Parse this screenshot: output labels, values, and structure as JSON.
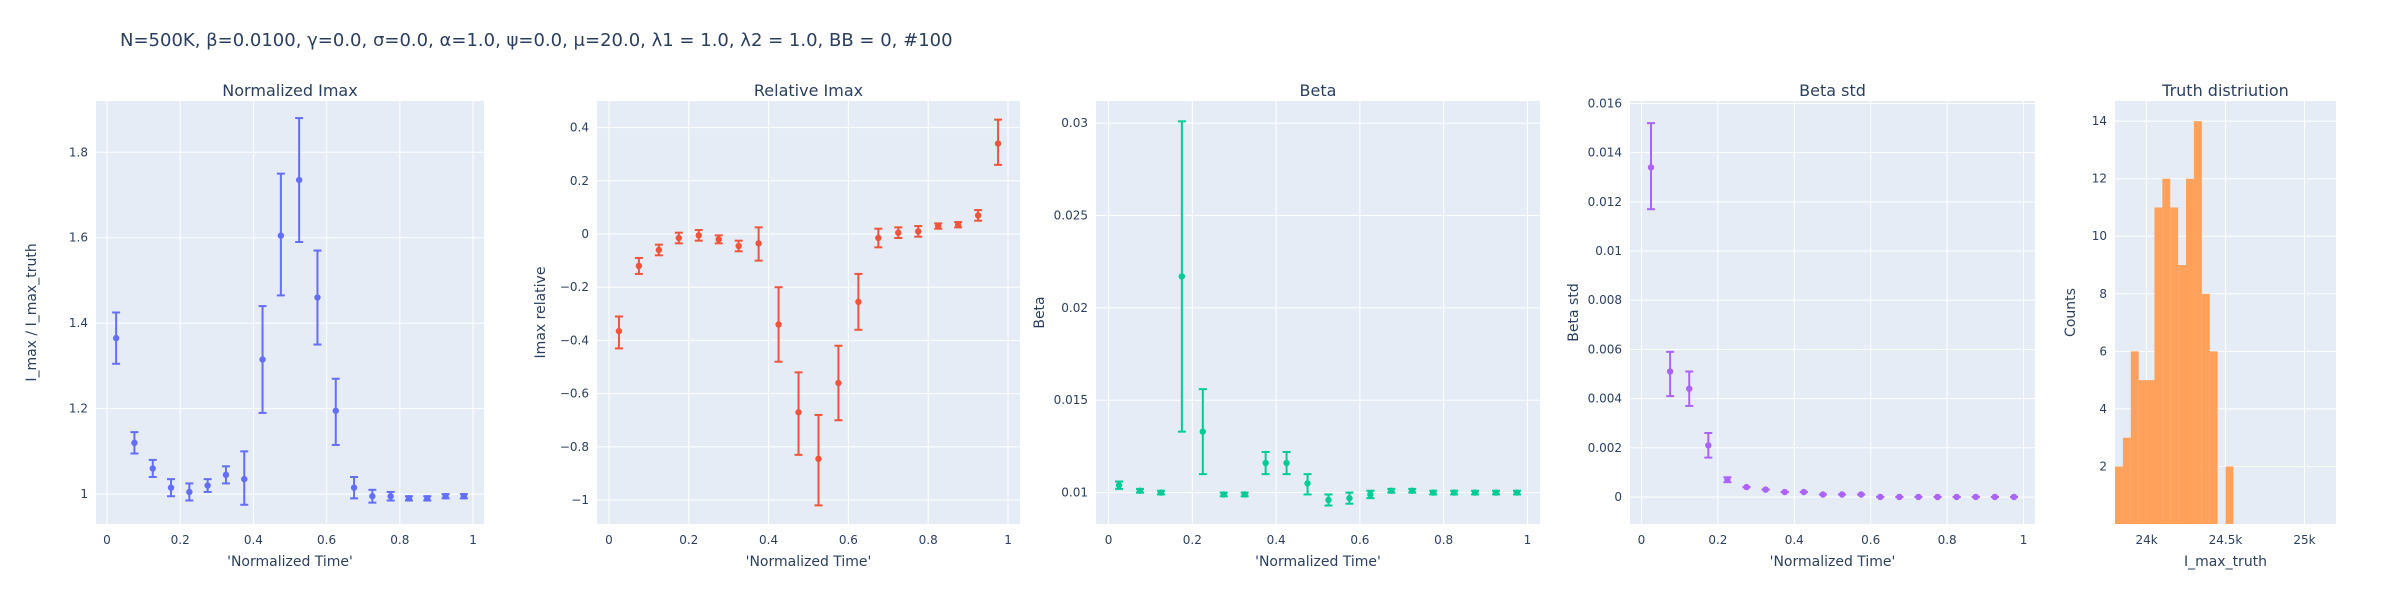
{
  "title": "N=500K, β=0.0100, γ=0.0, σ=0.0,  α=1.0, ψ=0.0, μ=20.0, λ1 = 1.0, λ2 = 1.0, BB = 0, #100",
  "colors": {
    "plot_bg": "#e5ecf6",
    "grid": "#ffffff",
    "text": "#2a3f5f"
  },
  "chart_data": [
    {
      "type": "scatter",
      "title": "Normalized Imax",
      "xlabel": "'Normalized Time'",
      "ylabel": "I_max / I_max_truth",
      "color": "#636efa",
      "xlim": [
        -0.03,
        1.03
      ],
      "ylim": [
        0.93,
        1.92
      ],
      "xticks": [
        0,
        0.2,
        0.4,
        0.6,
        0.8,
        1
      ],
      "xtick_labels": [
        "0",
        "0.2",
        "0.4",
        "0.6",
        "0.8",
        "1"
      ],
      "yticks": [
        1,
        1.2,
        1.4,
        1.6,
        1.8
      ],
      "ytick_labels": [
        "1",
        "1.2",
        "1.4",
        "1.6",
        "1.8"
      ],
      "points": [
        {
          "x": 0.025,
          "y": 1.365,
          "lo": 1.305,
          "hi": 1.425
        },
        {
          "x": 0.075,
          "y": 1.12,
          "lo": 1.095,
          "hi": 1.145
        },
        {
          "x": 0.125,
          "y": 1.06,
          "lo": 1.04,
          "hi": 1.08
        },
        {
          "x": 0.175,
          "y": 1.015,
          "lo": 0.995,
          "hi": 1.035
        },
        {
          "x": 0.225,
          "y": 1.005,
          "lo": 0.985,
          "hi": 1.025
        },
        {
          "x": 0.275,
          "y": 1.02,
          "lo": 1.005,
          "hi": 1.035
        },
        {
          "x": 0.325,
          "y": 1.045,
          "lo": 1.025,
          "hi": 1.065
        },
        {
          "x": 0.375,
          "y": 1.035,
          "lo": 0.975,
          "hi": 1.1
        },
        {
          "x": 0.425,
          "y": 1.315,
          "lo": 1.19,
          "hi": 1.44
        },
        {
          "x": 0.475,
          "y": 1.605,
          "lo": 1.465,
          "hi": 1.75
        },
        {
          "x": 0.525,
          "y": 1.735,
          "lo": 1.59,
          "hi": 1.88
        },
        {
          "x": 0.575,
          "y": 1.46,
          "lo": 1.35,
          "hi": 1.57
        },
        {
          "x": 0.625,
          "y": 1.195,
          "lo": 1.115,
          "hi": 1.27
        },
        {
          "x": 0.675,
          "y": 1.015,
          "lo": 0.99,
          "hi": 1.04
        },
        {
          "x": 0.725,
          "y": 0.995,
          "lo": 0.98,
          "hi": 1.01
        },
        {
          "x": 0.775,
          "y": 0.995,
          "lo": 0.985,
          "hi": 1.005
        },
        {
          "x": 0.825,
          "y": 0.99,
          "lo": 0.985,
          "hi": 0.995
        },
        {
          "x": 0.875,
          "y": 0.99,
          "lo": 0.985,
          "hi": 0.995
        },
        {
          "x": 0.925,
          "y": 0.995,
          "lo": 0.99,
          "hi": 1.0
        },
        {
          "x": 0.975,
          "y": 0.995,
          "lo": 0.99,
          "hi": 1.0
        }
      ]
    },
    {
      "type": "scatter",
      "title": "Relative Imax",
      "xlabel": "'Normalized Time'",
      "ylabel": "Imax relative",
      "color": "#ef553b",
      "xlim": [
        -0.03,
        1.03
      ],
      "ylim": [
        -1.09,
        0.5
      ],
      "xticks": [
        0,
        0.2,
        0.4,
        0.6,
        0.8,
        1
      ],
      "xtick_labels": [
        "0",
        "0.2",
        "0.4",
        "0.6",
        "0.8",
        "1"
      ],
      "yticks": [
        -1,
        -0.8,
        -0.6,
        -0.4,
        -0.2,
        0,
        0.2,
        0.4
      ],
      "ytick_labels": [
        "−1",
        "−0.8",
        "−0.6",
        "−0.4",
        "−0.2",
        "0",
        "0.2",
        "0.4"
      ],
      "points": [
        {
          "x": 0.025,
          "y": -0.365,
          "lo": -0.43,
          "hi": -0.31
        },
        {
          "x": 0.075,
          "y": -0.12,
          "lo": -0.15,
          "hi": -0.09
        },
        {
          "x": 0.125,
          "y": -0.06,
          "lo": -0.08,
          "hi": -0.04
        },
        {
          "x": 0.175,
          "y": -0.015,
          "lo": -0.035,
          "hi": 0.005
        },
        {
          "x": 0.225,
          "y": -0.005,
          "lo": -0.025,
          "hi": 0.015
        },
        {
          "x": 0.275,
          "y": -0.02,
          "lo": -0.035,
          "hi": -0.005
        },
        {
          "x": 0.325,
          "y": -0.045,
          "lo": -0.065,
          "hi": -0.025
        },
        {
          "x": 0.375,
          "y": -0.035,
          "lo": -0.1,
          "hi": 0.025
        },
        {
          "x": 0.425,
          "y": -0.34,
          "lo": -0.48,
          "hi": -0.2
        },
        {
          "x": 0.475,
          "y": -0.67,
          "lo": -0.83,
          "hi": -0.52
        },
        {
          "x": 0.525,
          "y": -0.845,
          "lo": -1.02,
          "hi": -0.68
        },
        {
          "x": 0.575,
          "y": -0.56,
          "lo": -0.7,
          "hi": -0.42
        },
        {
          "x": 0.625,
          "y": -0.255,
          "lo": -0.36,
          "hi": -0.15
        },
        {
          "x": 0.675,
          "y": -0.015,
          "lo": -0.05,
          "hi": 0.02
        },
        {
          "x": 0.725,
          "y": 0.005,
          "lo": -0.015,
          "hi": 0.025
        },
        {
          "x": 0.775,
          "y": 0.01,
          "lo": -0.01,
          "hi": 0.03
        },
        {
          "x": 0.825,
          "y": 0.03,
          "lo": 0.02,
          "hi": 0.04
        },
        {
          "x": 0.875,
          "y": 0.035,
          "lo": 0.025,
          "hi": 0.045
        },
        {
          "x": 0.925,
          "y": 0.07,
          "lo": 0.05,
          "hi": 0.09
        },
        {
          "x": 0.975,
          "y": 0.34,
          "lo": 0.26,
          "hi": 0.43
        }
      ]
    },
    {
      "type": "scatter",
      "title": "Beta",
      "xlabel": "'Normalized Time'",
      "ylabel": "Beta",
      "color": "#00cc96",
      "xlim": [
        -0.03,
        1.03
      ],
      "ylim": [
        0.0083,
        0.0312
      ],
      "xticks": [
        0,
        0.2,
        0.4,
        0.6,
        0.8,
        1
      ],
      "xtick_labels": [
        "0",
        "0.2",
        "0.4",
        "0.6",
        "0.8",
        "1"
      ],
      "yticks": [
        0.01,
        0.015,
        0.02,
        0.025,
        0.03
      ],
      "ytick_labels": [
        "0.01",
        "0.015",
        "0.02",
        "0.025",
        "0.03"
      ],
      "points": [
        {
          "x": 0.025,
          "y": 0.0104,
          "lo": 0.0102,
          "hi": 0.0106
        },
        {
          "x": 0.075,
          "y": 0.0101,
          "lo": 0.01,
          "hi": 0.0102
        },
        {
          "x": 0.125,
          "y": 0.01,
          "lo": 0.0099,
          "hi": 0.0101
        },
        {
          "x": 0.175,
          "y": 0.0217,
          "lo": 0.0133,
          "hi": 0.0301
        },
        {
          "x": 0.225,
          "y": 0.0133,
          "lo": 0.011,
          "hi": 0.0156
        },
        {
          "x": 0.275,
          "y": 0.0099,
          "lo": 0.0098,
          "hi": 0.01
        },
        {
          "x": 0.325,
          "y": 0.0099,
          "lo": 0.0098,
          "hi": 0.01
        },
        {
          "x": 0.375,
          "y": 0.0116,
          "lo": 0.011,
          "hi": 0.0122
        },
        {
          "x": 0.425,
          "y": 0.0116,
          "lo": 0.011,
          "hi": 0.0122
        },
        {
          "x": 0.475,
          "y": 0.0105,
          "lo": 0.0099,
          "hi": 0.011
        },
        {
          "x": 0.525,
          "y": 0.0096,
          "lo": 0.0093,
          "hi": 0.0099
        },
        {
          "x": 0.575,
          "y": 0.0097,
          "lo": 0.0094,
          "hi": 0.01
        },
        {
          "x": 0.625,
          "y": 0.0099,
          "lo": 0.0097,
          "hi": 0.0101
        },
        {
          "x": 0.675,
          "y": 0.0101,
          "lo": 0.01,
          "hi": 0.0102
        },
        {
          "x": 0.725,
          "y": 0.0101,
          "lo": 0.01,
          "hi": 0.0102
        },
        {
          "x": 0.775,
          "y": 0.01,
          "lo": 0.0099,
          "hi": 0.0101
        },
        {
          "x": 0.825,
          "y": 0.01,
          "lo": 0.0099,
          "hi": 0.0101
        },
        {
          "x": 0.875,
          "y": 0.01,
          "lo": 0.0099,
          "hi": 0.0101
        },
        {
          "x": 0.925,
          "y": 0.01,
          "lo": 0.0099,
          "hi": 0.0101
        },
        {
          "x": 0.975,
          "y": 0.01,
          "lo": 0.0099,
          "hi": 0.0101
        }
      ]
    },
    {
      "type": "scatter",
      "title": "Beta std",
      "xlabel": "'Normalized Time'",
      "ylabel": "Beta std",
      "color": "#ab63fa",
      "xlim": [
        -0.03,
        1.03
      ],
      "ylim": [
        -0.0011,
        0.0161
      ],
      "xticks": [
        0,
        0.2,
        0.4,
        0.6,
        0.8,
        1
      ],
      "xtick_labels": [
        "0",
        "0.2",
        "0.4",
        "0.6",
        "0.8",
        "1"
      ],
      "yticks": [
        0,
        0.002,
        0.004,
        0.006,
        0.008,
        0.01,
        0.012,
        0.014,
        0.016
      ],
      "ytick_labels": [
        "0",
        "0.002",
        "0.004",
        "0.006",
        "0.008",
        "0.01",
        "0.012",
        "0.014",
        "0.016"
      ],
      "points": [
        {
          "x": 0.025,
          "y": 0.0134,
          "lo": 0.0117,
          "hi": 0.0152
        },
        {
          "x": 0.075,
          "y": 0.0051,
          "lo": 0.0041,
          "hi": 0.0059
        },
        {
          "x": 0.125,
          "y": 0.0044,
          "lo": 0.0037,
          "hi": 0.0051
        },
        {
          "x": 0.175,
          "y": 0.0021,
          "lo": 0.0016,
          "hi": 0.0026
        },
        {
          "x": 0.225,
          "y": 0.0007,
          "lo": 0.0006,
          "hi": 0.0008
        },
        {
          "x": 0.275,
          "y": 0.0004,
          "lo": 0.0004,
          "hi": 0.0004
        },
        {
          "x": 0.325,
          "y": 0.0003,
          "lo": 0.0003,
          "hi": 0.0003
        },
        {
          "x": 0.375,
          "y": 0.0002,
          "lo": 0.0002,
          "hi": 0.0002
        },
        {
          "x": 0.425,
          "y": 0.0002,
          "lo": 0.0002,
          "hi": 0.0002
        },
        {
          "x": 0.475,
          "y": 0.0001,
          "lo": 0.0001,
          "hi": 0.0001
        },
        {
          "x": 0.525,
          "y": 0.0001,
          "lo": 0.0001,
          "hi": 0.0001
        },
        {
          "x": 0.575,
          "y": 0.0001,
          "lo": 0.0001,
          "hi": 0.0001
        },
        {
          "x": 0.625,
          "y": 0.0,
          "lo": 0.0,
          "hi": 0.0
        },
        {
          "x": 0.675,
          "y": 0.0,
          "lo": 0.0,
          "hi": 0.0
        },
        {
          "x": 0.725,
          "y": 0.0,
          "lo": 0.0,
          "hi": 0.0
        },
        {
          "x": 0.775,
          "y": 0.0,
          "lo": 0.0,
          "hi": 0.0
        },
        {
          "x": 0.825,
          "y": 0.0,
          "lo": 0.0,
          "hi": 0.0
        },
        {
          "x": 0.875,
          "y": 0.0,
          "lo": 0.0,
          "hi": 0.0
        },
        {
          "x": 0.925,
          "y": 0.0,
          "lo": 0.0,
          "hi": 0.0
        },
        {
          "x": 0.975,
          "y": 0.0,
          "lo": 0.0,
          "hi": 0.0
        }
      ]
    },
    {
      "type": "bar",
      "title": "Truth distriution",
      "xlabel": "I_max_truth",
      "ylabel": "Counts",
      "color": "#ffa15a",
      "xlim": [
        23800,
        25200
      ],
      "ylim": [
        0,
        14.7
      ],
      "xticks": [
        24000,
        24500,
        25000
      ],
      "xtick_labels": [
        "24k",
        "24.5k",
        "25k"
      ],
      "yticks": [
        2,
        4,
        6,
        8,
        10,
        12,
        14
      ],
      "ytick_labels": [
        "2",
        "4",
        "6",
        "8",
        "10",
        "12",
        "14"
      ],
      "bin_width": 50,
      "bins": [
        {
          "x0": 23800,
          "count": 2
        },
        {
          "x0": 23850,
          "count": 3
        },
        {
          "x0": 23900,
          "count": 6
        },
        {
          "x0": 23950,
          "count": 5
        },
        {
          "x0": 24000,
          "count": 5
        },
        {
          "x0": 24050,
          "count": 11
        },
        {
          "x0": 24100,
          "count": 12
        },
        {
          "x0": 24150,
          "count": 11
        },
        {
          "x0": 24200,
          "count": 9
        },
        {
          "x0": 24250,
          "count": 12
        },
        {
          "x0": 24300,
          "count": 14
        },
        {
          "x0": 24350,
          "count": 8
        },
        {
          "x0": 24400,
          "count": 6
        },
        {
          "x0": 24450,
          "count": 0
        },
        {
          "x0": 24500,
          "count": 2
        }
      ]
    }
  ]
}
